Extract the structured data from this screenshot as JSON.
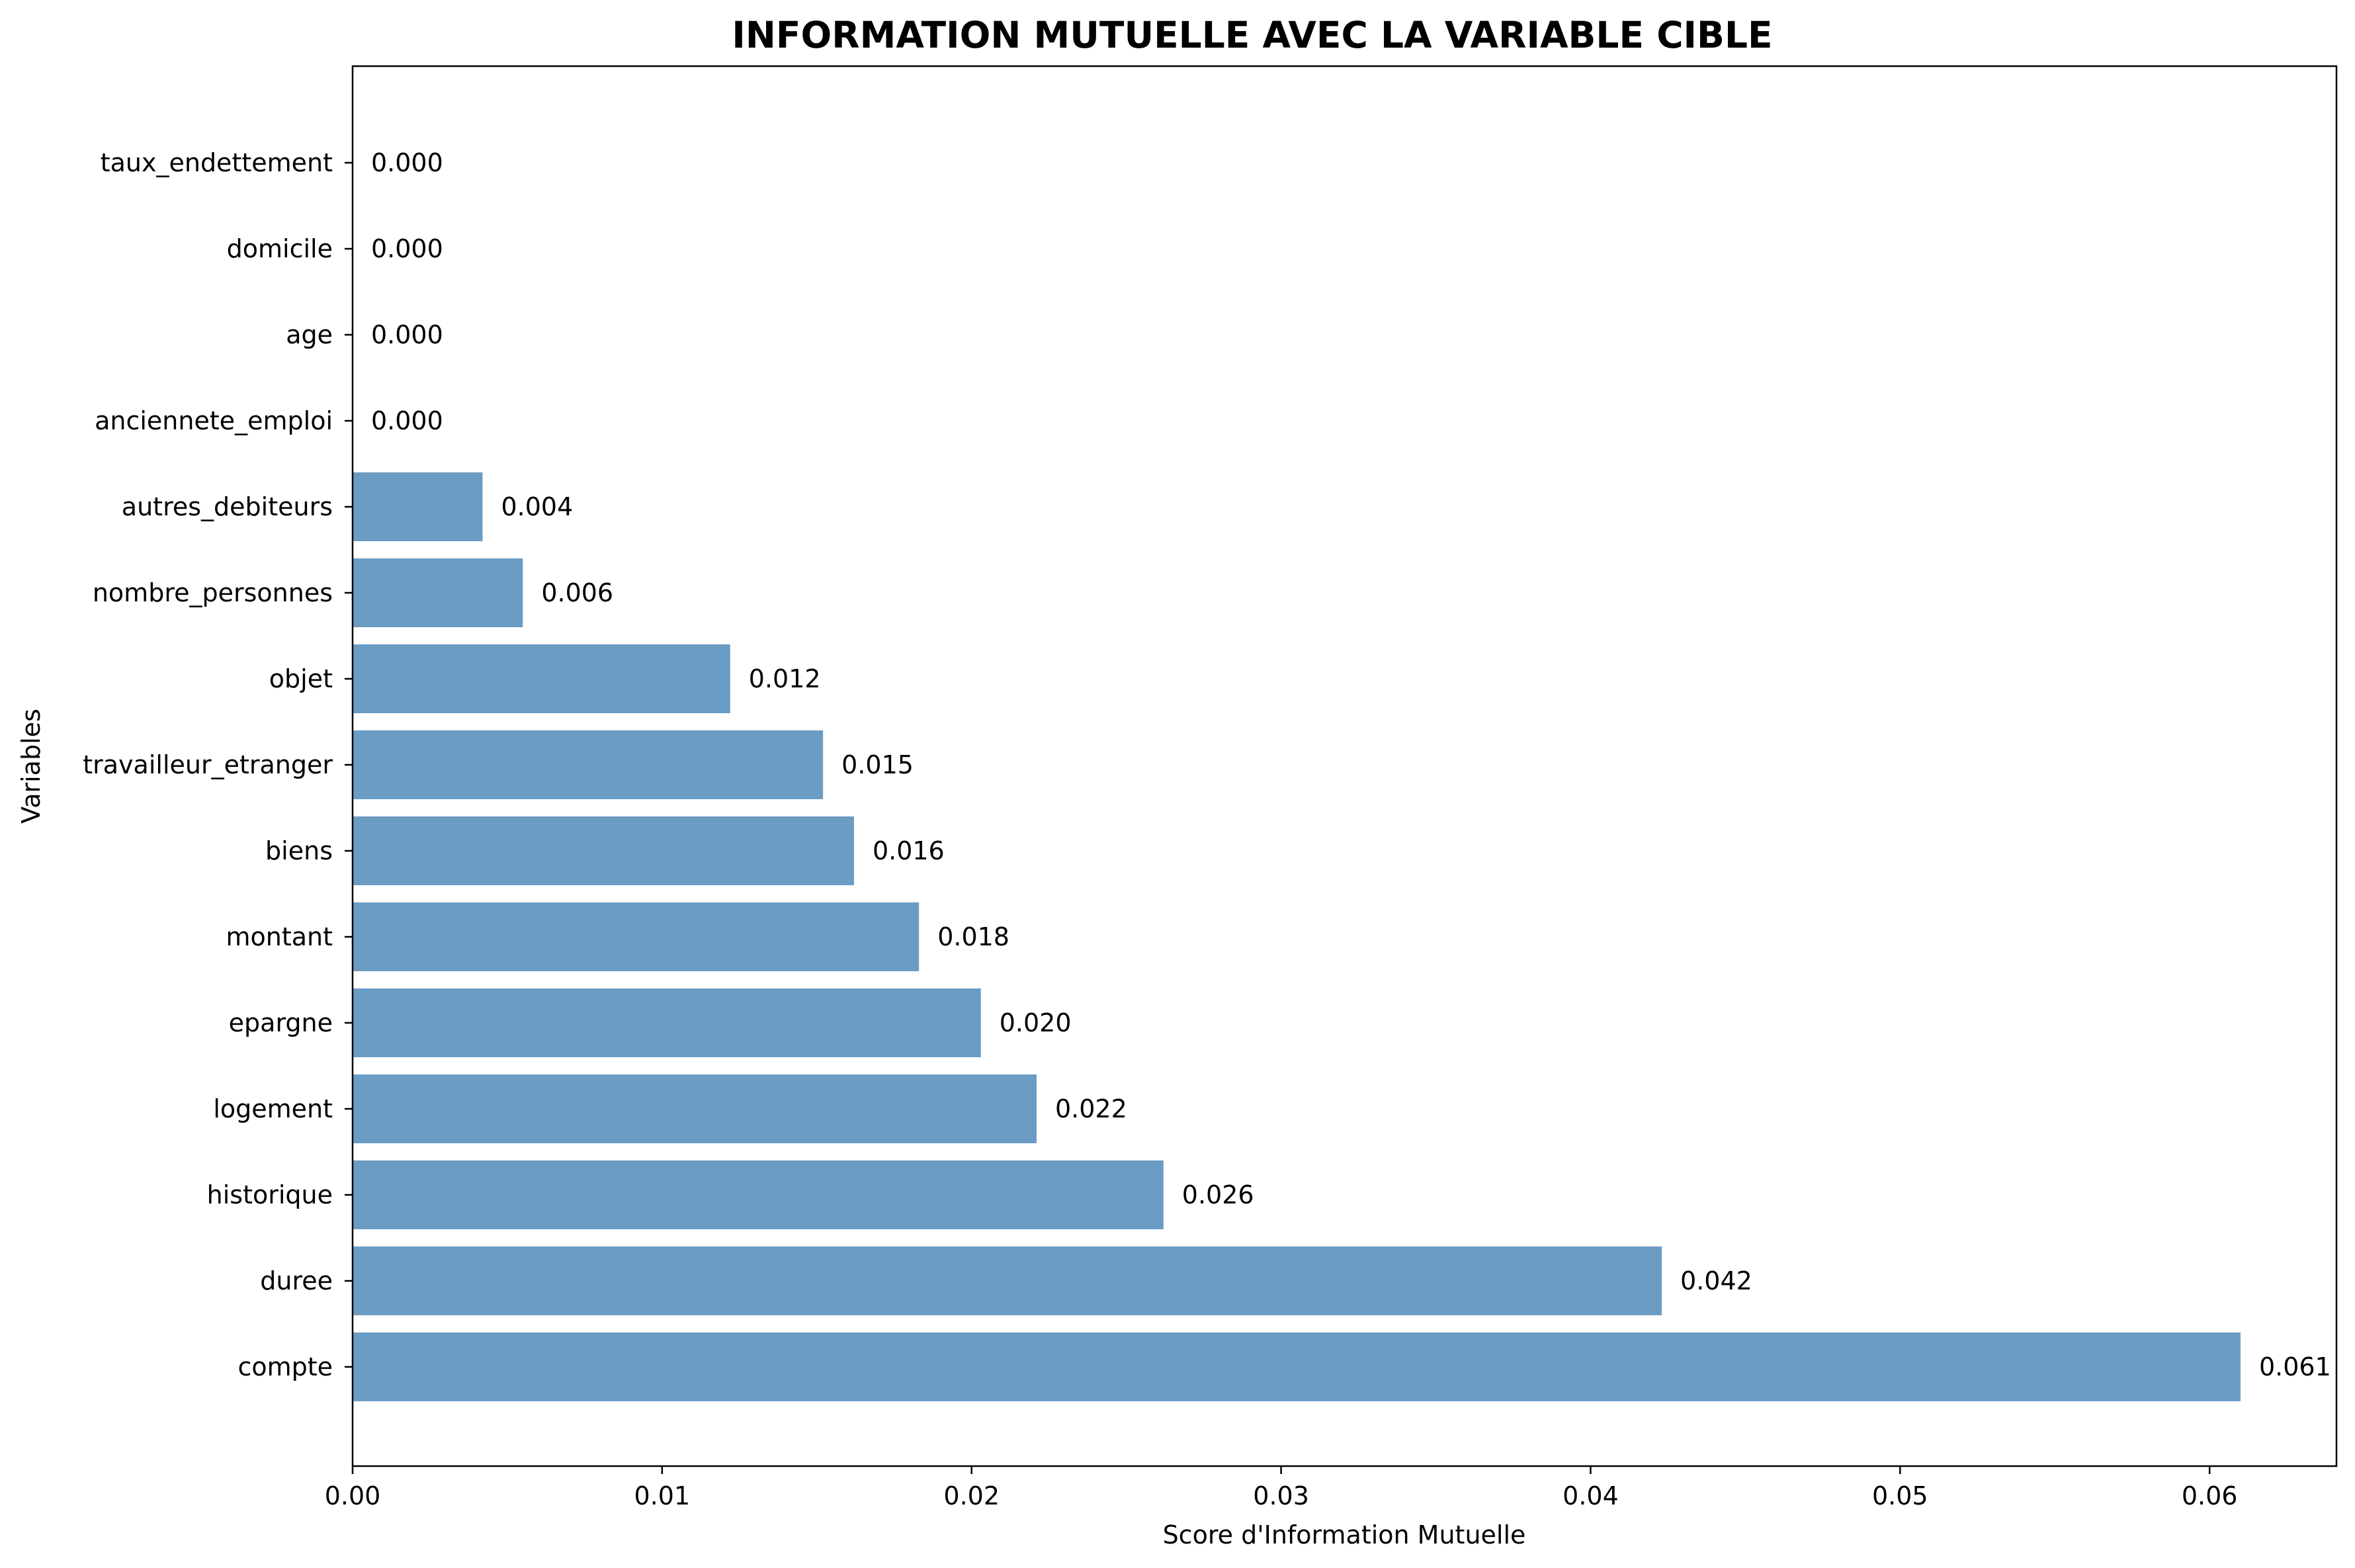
{
  "chart_data": {
    "type": "bar",
    "orientation": "horizontal",
    "title": "INFORMATION MUTUELLE AVEC LA VARIABLE CIBLE",
    "xlabel": "Score d'Information Mutuelle",
    "ylabel": "Variables",
    "categories": [
      "compte",
      "duree",
      "historique",
      "logement",
      "epargne",
      "montant",
      "biens",
      "travailleur_etranger",
      "objet",
      "nombre_personnes",
      "autres_debiteurs",
      "anciennete_emploi",
      "age",
      "domicile",
      "taux_endettement"
    ],
    "values": [
      0.061,
      0.0423,
      0.0262,
      0.0221,
      0.0203,
      0.0183,
      0.0162,
      0.0152,
      0.0122,
      0.0055,
      0.0042,
      0.0,
      0.0,
      0.0,
      0.0
    ],
    "value_labels": [
      "0.061",
      "0.042",
      "0.026",
      "0.022",
      "0.020",
      "0.018",
      "0.016",
      "0.015",
      "0.012",
      "0.006",
      "0.004",
      "0.000",
      "0.000",
      "0.000",
      "0.000"
    ],
    "xlim": [
      0,
      0.0641
    ],
    "xticks": [
      0.0,
      0.01,
      0.02,
      0.03,
      0.04,
      0.05,
      0.06
    ],
    "xtick_labels": [
      "0.00",
      "0.01",
      "0.02",
      "0.03",
      "0.04",
      "0.05",
      "0.06"
    ],
    "grid": false,
    "bar_color": "#6b9cc4"
  }
}
